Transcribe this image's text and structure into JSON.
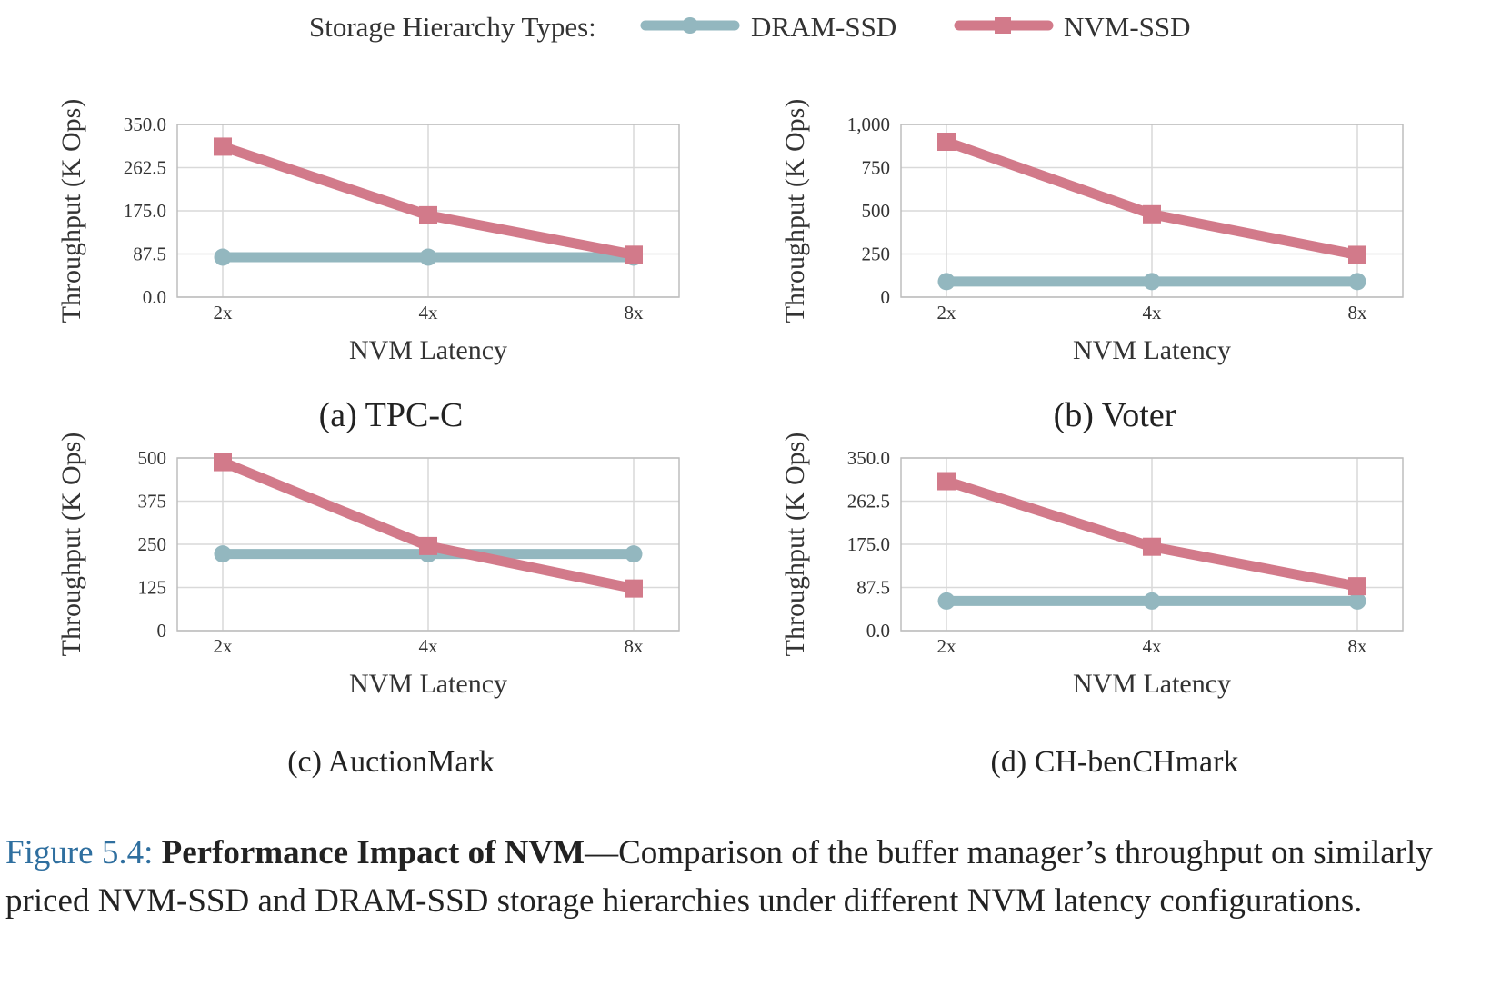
{
  "legend": {
    "title": "Storage Hierarchy Types:",
    "entries": [
      "DRAM-SSD",
      "NVM-SSD"
    ]
  },
  "colors": {
    "dram": "#93b7bf",
    "nvm": "#d27a8a",
    "grid": "#d9d9d9",
    "axis": "#bdbdbd",
    "caption_label": "#2f6f9f"
  },
  "chart_data": [
    {
      "type": "line",
      "subcaption": "(a) TPC-C",
      "xlabel": "NVM Latency",
      "ylabel": "Throughput (K Ops)",
      "categories": [
        "2x",
        "4x",
        "8x"
      ],
      "yticks": [
        "0.0",
        "87.5",
        "175.0",
        "262.5",
        "350.0"
      ],
      "ylim": [
        0,
        350
      ],
      "series": [
        {
          "name": "DRAM-SSD",
          "values": [
            81,
            81,
            81
          ]
        },
        {
          "name": "NVM-SSD",
          "values": [
            305,
            166,
            86
          ]
        }
      ]
    },
    {
      "type": "line",
      "subcaption": "(b) Voter",
      "xlabel": "NVM Latency",
      "ylabel": "Throughput (K Ops)",
      "categories": [
        "2x",
        "4x",
        "8x"
      ],
      "yticks": [
        "0",
        "250",
        "500",
        "750",
        "1,000"
      ],
      "ylim": [
        0,
        1000
      ],
      "series": [
        {
          "name": "DRAM-SSD",
          "values": [
            90,
            90,
            90
          ]
        },
        {
          "name": "NVM-SSD",
          "values": [
            900,
            480,
            245
          ]
        }
      ]
    },
    {
      "type": "line",
      "subcaption": "(c) AuctionMark",
      "xlabel": "NVM Latency",
      "ylabel": "Throughput (K Ops)",
      "categories": [
        "2x",
        "4x",
        "8x"
      ],
      "yticks": [
        "0",
        "125",
        "250",
        "375",
        "500"
      ],
      "ylim": [
        0,
        500
      ],
      "series": [
        {
          "name": "DRAM-SSD",
          "values": [
            222,
            222,
            222
          ]
        },
        {
          "name": "NVM-SSD",
          "values": [
            488,
            245,
            122
          ]
        }
      ]
    },
    {
      "type": "line",
      "subcaption": "(d) CH-benCHmark",
      "xlabel": "NVM Latency",
      "ylabel": "Throughput (K Ops)",
      "categories": [
        "2x",
        "4x",
        "8x"
      ],
      "yticks": [
        "0.0",
        "87.5",
        "175.0",
        "262.5",
        "350.0"
      ],
      "ylim": [
        0,
        350
      ],
      "series": [
        {
          "name": "DRAM-SSD",
          "values": [
            60,
            60,
            60
          ]
        },
        {
          "name": "NVM-SSD",
          "values": [
            303,
            170,
            90
          ]
        }
      ]
    }
  ],
  "caption": {
    "label": "Figure 5.4:",
    "bold": "Performance Impact of NVM",
    "text": "—Comparison of the buffer manager’s throughput on similarly priced NVM-SSD and DRAM-SSD storage hierarchies under different NVM latency configurations."
  }
}
